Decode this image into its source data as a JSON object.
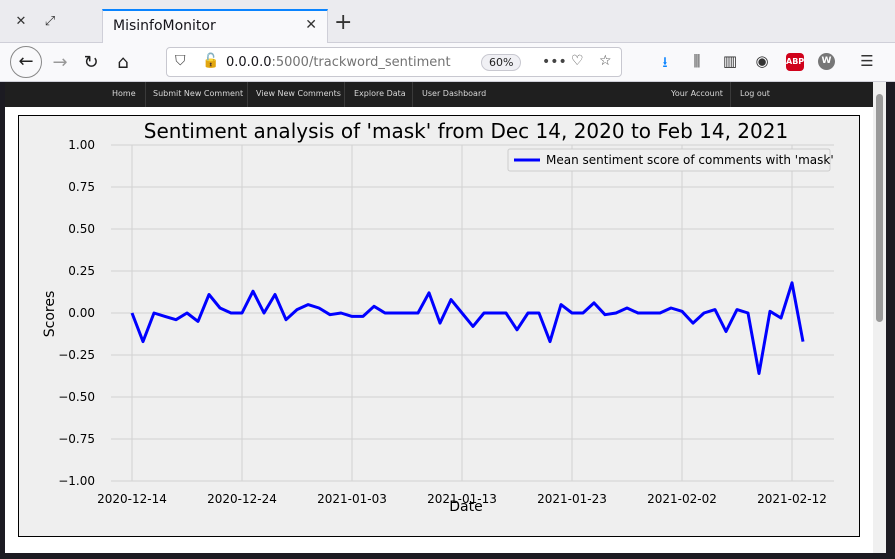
{
  "browser": {
    "tab_title": "MisinfoMonitor",
    "url_host": "0.0.0.0",
    "url_path": ":5000/trackword_sentiment",
    "zoom": "60%"
  },
  "site_nav": {
    "left_items": [
      "Home",
      "Submit New Comment",
      "View New Comments",
      "Explore Data",
      "User Dashboard"
    ],
    "right_items": [
      "Your Account",
      "Log out"
    ]
  },
  "chart_data": {
    "type": "line",
    "title": "Sentiment analysis of 'mask' from Dec 14, 2020 to Feb 14, 2021",
    "xlabel": "Date",
    "ylabel": "Scores",
    "ylim": [
      -1.0,
      1.0
    ],
    "yticks": [
      "1.00",
      "0.75",
      "0.50",
      "0.25",
      "0.00",
      "−0.25",
      "−0.50",
      "−0.75",
      "−1.00"
    ],
    "xticks": [
      "2020-12-14",
      "2020-12-24",
      "2021-01-03",
      "2021-01-13",
      "2021-01-23",
      "2021-02-02",
      "2021-02-12"
    ],
    "grid": true,
    "legend_position": "top-right",
    "series": [
      {
        "name": "Mean sentiment score of comments with 'mask'",
        "color": "#0000ff",
        "start": "2020-12-14",
        "values": [
          0.0,
          -0.17,
          0.0,
          -0.02,
          -0.04,
          0.0,
          -0.05,
          0.11,
          0.03,
          0.0,
          0.0,
          0.13,
          0.0,
          0.11,
          -0.04,
          0.02,
          0.05,
          0.03,
          -0.01,
          0.0,
          -0.02,
          -0.02,
          0.04,
          0.0,
          0.0,
          0.0,
          0.0,
          0.12,
          -0.06,
          0.08,
          0.0,
          -0.08,
          0.0,
          0.0,
          0.0,
          -0.1,
          0.0,
          0.0,
          -0.17,
          0.05,
          0.0,
          0.0,
          0.06,
          -0.01,
          0.0,
          0.03,
          0.0,
          0.0,
          0.0,
          0.03,
          0.01,
          -0.06,
          0.0,
          0.02,
          -0.11,
          0.02,
          0.0,
          -0.36,
          0.01,
          -0.03,
          0.18,
          -0.17
        ]
      }
    ]
  }
}
